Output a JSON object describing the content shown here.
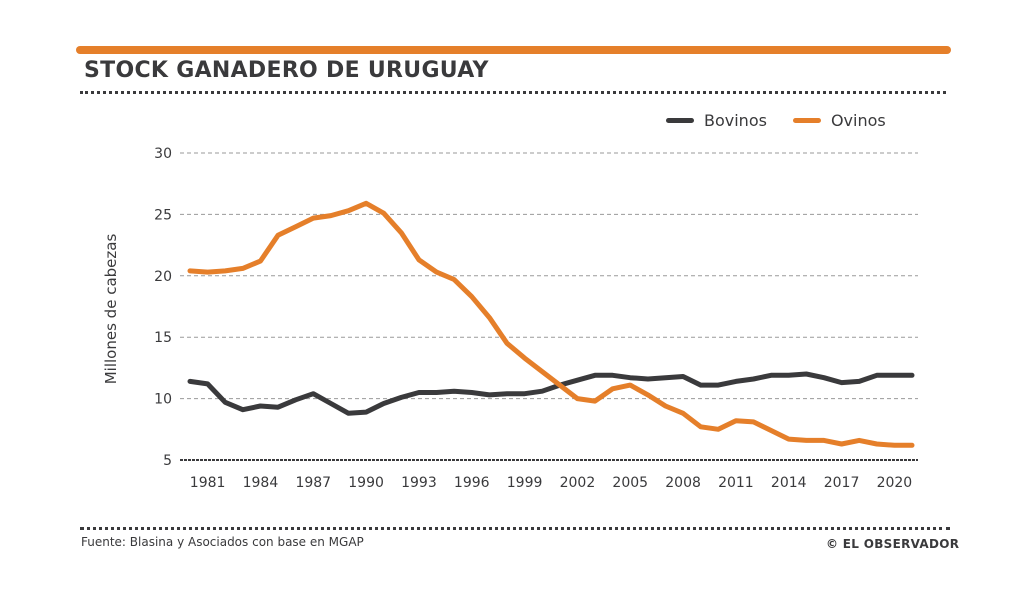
{
  "header": {
    "title": "STOCK GANADERO DE URUGUAY",
    "accent_color": "#e57f2a"
  },
  "legend": [
    {
      "label": "Bovinos",
      "color": "#3a3a3c"
    },
    {
      "label": "Ovinos",
      "color": "#e57f2a"
    }
  ],
  "footer": {
    "source": "Fuente: Blasina y Asociados con base en MGAP",
    "copyright": "© EL OBSERVADOR"
  },
  "chart_data": {
    "type": "line",
    "title": "STOCK GANADERO DE URUGUAY",
    "xlabel": "",
    "ylabel": "Millones de cabezas",
    "ylim": [
      5,
      30
    ],
    "xlim": [
      1980,
      2021
    ],
    "yticks": [
      5,
      10,
      15,
      20,
      25,
      30
    ],
    "xticks": [
      1981,
      1984,
      1987,
      1990,
      1993,
      1996,
      1999,
      2002,
      2005,
      2008,
      2011,
      2014,
      2017,
      2020
    ],
    "grid": true,
    "legend_position": "top-right",
    "x": [
      1980,
      1981,
      1982,
      1983,
      1984,
      1985,
      1986,
      1987,
      1988,
      1989,
      1990,
      1991,
      1992,
      1993,
      1994,
      1995,
      1996,
      1997,
      1998,
      1999,
      2000,
      2001,
      2002,
      2003,
      2004,
      2005,
      2006,
      2007,
      2008,
      2009,
      2010,
      2011,
      2012,
      2013,
      2014,
      2015,
      2016,
      2017,
      2018,
      2019,
      2020,
      2021
    ],
    "series": [
      {
        "name": "Bovinos",
        "color": "#3a3a3c",
        "values": [
          11.4,
          11.2,
          9.7,
          9.1,
          9.4,
          9.3,
          9.9,
          10.4,
          9.6,
          8.8,
          8.9,
          9.6,
          10.1,
          10.5,
          10.5,
          10.6,
          10.5,
          10.3,
          10.4,
          10.4,
          10.6,
          11.1,
          11.5,
          11.9,
          11.9,
          11.7,
          11.6,
          11.7,
          11.8,
          11.1,
          11.1,
          11.4,
          11.6,
          11.9,
          11.9,
          12.0,
          11.7,
          11.3,
          11.4,
          11.9,
          11.9,
          11.9
        ]
      },
      {
        "name": "Ovinos",
        "color": "#e57f2a",
        "values": [
          20.4,
          20.3,
          20.4,
          20.6,
          21.2,
          23.3,
          24.0,
          24.7,
          24.9,
          25.3,
          25.9,
          25.1,
          23.5,
          21.3,
          20.3,
          19.7,
          18.3,
          16.6,
          14.5,
          13.3,
          12.2,
          11.1,
          10.0,
          9.8,
          10.8,
          11.1,
          10.3,
          9.4,
          8.8,
          7.7,
          7.5,
          8.2,
          8.1,
          7.4,
          6.7,
          6.6,
          6.6,
          6.3,
          6.6,
          6.3,
          6.2,
          6.2
        ]
      }
    ]
  }
}
